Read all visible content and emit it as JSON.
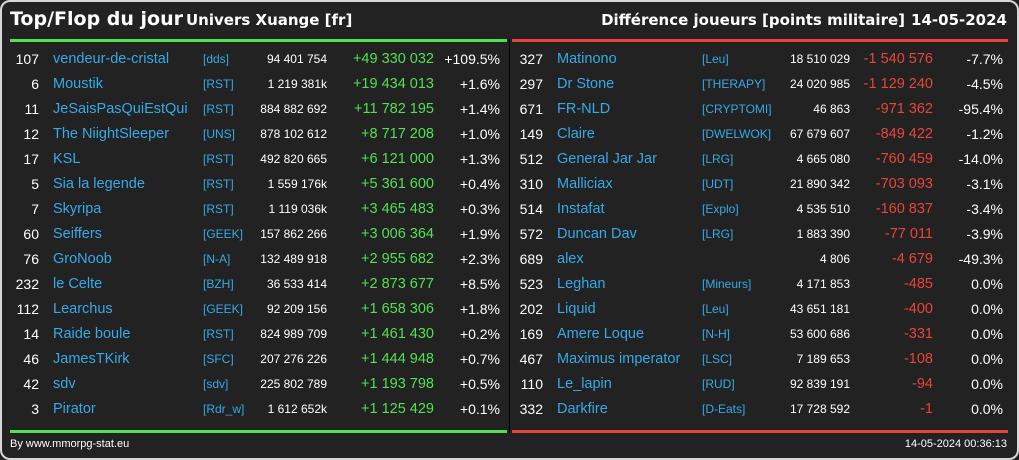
{
  "header": {
    "title": "Top/Flop du jour",
    "universe": "Univers Xuange [fr]",
    "metric": "Différence joueurs [points militaire]",
    "date": "14-05-2024"
  },
  "colors": {
    "top": "#52e052",
    "flop": "#e8443a",
    "name": "#37a9e8",
    "background": "#222222"
  },
  "top": [
    {
      "rank": "107",
      "name": "vendeur-de-cristal",
      "alliance": "[dds]",
      "points": "94 401 754",
      "delta": "+49 330 032",
      "pct": "+109.5%"
    },
    {
      "rank": "6",
      "name": "Moustik",
      "alliance": "[RST]",
      "points": "1 219 381k",
      "delta": "+19 434 013",
      "pct": "+1.6%"
    },
    {
      "rank": "11",
      "name": "JeSaisPasQuiEstQui",
      "alliance": "[RST]",
      "points": "884 882 692",
      "delta": "+11 782 195",
      "pct": "+1.4%"
    },
    {
      "rank": "12",
      "name": "The NiightSleeper",
      "alliance": "[UNS]",
      "points": "878 102 612",
      "delta": "+8 717 208",
      "pct": "+1.0%"
    },
    {
      "rank": "17",
      "name": "KSL",
      "alliance": "[RST]",
      "points": "492 820 665",
      "delta": "+6 121 000",
      "pct": "+1.3%"
    },
    {
      "rank": "5",
      "name": "Sia la legende",
      "alliance": "[RST]",
      "points": "1 559 176k",
      "delta": "+5 361 600",
      "pct": "+0.4%"
    },
    {
      "rank": "7",
      "name": "Skyripa",
      "alliance": "[RST]",
      "points": "1 119 036k",
      "delta": "+3 465 483",
      "pct": "+0.3%"
    },
    {
      "rank": "60",
      "name": "Seiffers",
      "alliance": "[GEEK]",
      "points": "157 862 266",
      "delta": "+3 006 364",
      "pct": "+1.9%"
    },
    {
      "rank": "76",
      "name": "GroNoob",
      "alliance": "[N-A]",
      "points": "132 489 918",
      "delta": "+2 955 682",
      "pct": "+2.3%"
    },
    {
      "rank": "232",
      "name": "le Celte",
      "alliance": "[BZH]",
      "points": "36 533 414",
      "delta": "+2 873 677",
      "pct": "+8.5%"
    },
    {
      "rank": "112",
      "name": "Learchus",
      "alliance": "[GEEK]",
      "points": "92 209 156",
      "delta": "+1 658 306",
      "pct": "+1.8%"
    },
    {
      "rank": "14",
      "name": "Raide boule",
      "alliance": "[RST]",
      "points": "824 989 709",
      "delta": "+1 461 430",
      "pct": "+0.2%"
    },
    {
      "rank": "46",
      "name": "JamesTKirk",
      "alliance": "[SFC]",
      "points": "207 276 226",
      "delta": "+1 444 948",
      "pct": "+0.7%"
    },
    {
      "rank": "42",
      "name": "sdv",
      "alliance": "[sdv]",
      "points": "225 802 789",
      "delta": "+1 193 798",
      "pct": "+0.5%"
    },
    {
      "rank": "3",
      "name": "Pirator",
      "alliance": "[Rdr_w]",
      "points": "1 612 652k",
      "delta": "+1 125 429",
      "pct": "+0.1%"
    }
  ],
  "flop": [
    {
      "rank": "327",
      "name": "Matinono",
      "alliance": "[Leu]",
      "points": "18 510 029",
      "delta": "-1 540 576",
      "pct": "-7.7%"
    },
    {
      "rank": "297",
      "name": "Dr Stone",
      "alliance": "[THERAPY]",
      "points": "24 020 985",
      "delta": "-1 129 240",
      "pct": "-4.5%"
    },
    {
      "rank": "671",
      "name": "FR-NLD",
      "alliance": "[CRYPTOMI]",
      "points": "46 863",
      "delta": "-971 362",
      "pct": "-95.4%"
    },
    {
      "rank": "149",
      "name": "Claire",
      "alliance": "[DWELWOK]",
      "points": "67 679 607",
      "delta": "-849 422",
      "pct": "-1.2%"
    },
    {
      "rank": "512",
      "name": "General Jar Jar",
      "alliance": "[LRG]",
      "points": "4 665 080",
      "delta": "-760 459",
      "pct": "-14.0%"
    },
    {
      "rank": "310",
      "name": "Malliciax",
      "alliance": "[UDT]",
      "points": "21 890 342",
      "delta": "-703 093",
      "pct": "-3.1%"
    },
    {
      "rank": "514",
      "name": "Instafat",
      "alliance": "[Explo]",
      "points": "4 535 510",
      "delta": "-160 837",
      "pct": "-3.4%"
    },
    {
      "rank": "572",
      "name": "Duncan Dav",
      "alliance": "[LRG]",
      "points": "1 883 390",
      "delta": "-77 011",
      "pct": "-3.9%"
    },
    {
      "rank": "689",
      "name": "alex",
      "alliance": "",
      "points": "4 806",
      "delta": "-4 679",
      "pct": "-49.3%"
    },
    {
      "rank": "523",
      "name": "Leghan",
      "alliance": "[Mineurs]",
      "points": "4 171 853",
      "delta": "-485",
      "pct": "0.0%"
    },
    {
      "rank": "202",
      "name": "Liquid",
      "alliance": "[Leu]",
      "points": "43 651 181",
      "delta": "-400",
      "pct": "0.0%"
    },
    {
      "rank": "169",
      "name": "Amere Loque",
      "alliance": "[N-H]",
      "points": "53 600 686",
      "delta": "-331",
      "pct": "0.0%"
    },
    {
      "rank": "467",
      "name": "Maximus imperator",
      "alliance": "[LSC]",
      "points": "7 189 653",
      "delta": "-108",
      "pct": "0.0%"
    },
    {
      "rank": "110",
      "name": "Le_lapin",
      "alliance": "[RUD]",
      "points": "92 839 191",
      "delta": "-94",
      "pct": "0.0%"
    },
    {
      "rank": "332",
      "name": "Darkfire",
      "alliance": "[D-Eats]",
      "points": "17 728 592",
      "delta": "-1",
      "pct": "0.0%"
    }
  ],
  "footer": {
    "credit": "By www.mmorpg-stat.eu",
    "timestamp": "14-05-2024 00:36:13"
  }
}
